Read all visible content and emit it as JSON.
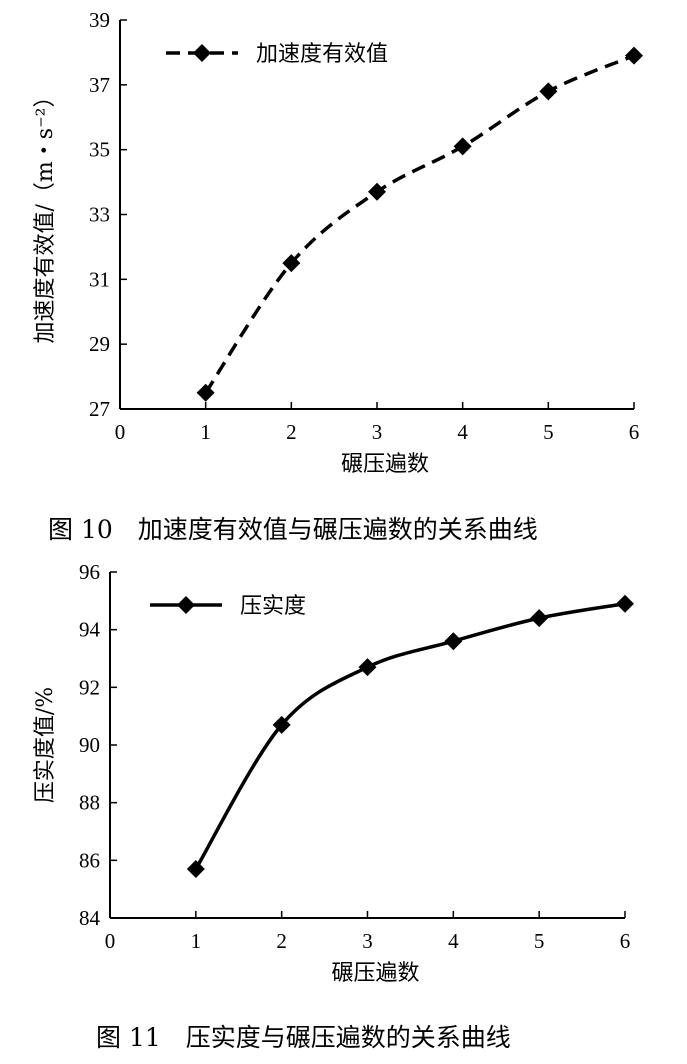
{
  "chart_data": [
    {
      "type": "line",
      "caption": "图 10　加速度有效值与碾压遍数的关系曲线",
      "xlabel": "碾压遍数",
      "ylabel": "加速度有效值/（m・s⁻²）",
      "x_ticks": [
        0,
        1,
        2,
        3,
        4,
        5,
        6
      ],
      "y_ticks": [
        27,
        29,
        31,
        33,
        35,
        37,
        39
      ],
      "xlim": [
        0,
        6
      ],
      "ylim": [
        27,
        39
      ],
      "legend_position": "top-left",
      "line_style": "dashed",
      "marker": "diamond",
      "grid": false,
      "series": [
        {
          "name": "加速度有效值",
          "x": [
            1,
            2,
            3,
            4,
            5,
            6
          ],
          "y": [
            27.5,
            31.5,
            33.7,
            35.1,
            36.8,
            37.9
          ]
        }
      ]
    },
    {
      "type": "line",
      "caption": "图 11　压实度与碾压遍数的关系曲线",
      "xlabel": "碾压遍数",
      "ylabel": "压实度值/%",
      "x_ticks": [
        0,
        1,
        2,
        3,
        4,
        5,
        6
      ],
      "y_ticks": [
        84,
        86,
        88,
        90,
        92,
        94,
        96
      ],
      "xlim": [
        0,
        6
      ],
      "ylim": [
        84,
        96
      ],
      "legend_position": "top-left",
      "line_style": "solid",
      "marker": "diamond",
      "grid": false,
      "series": [
        {
          "name": "压实度",
          "x": [
            1,
            2,
            3,
            4,
            5,
            6
          ],
          "y": [
            85.7,
            90.7,
            92.7,
            93.6,
            94.4,
            94.9
          ]
        }
      ]
    }
  ]
}
